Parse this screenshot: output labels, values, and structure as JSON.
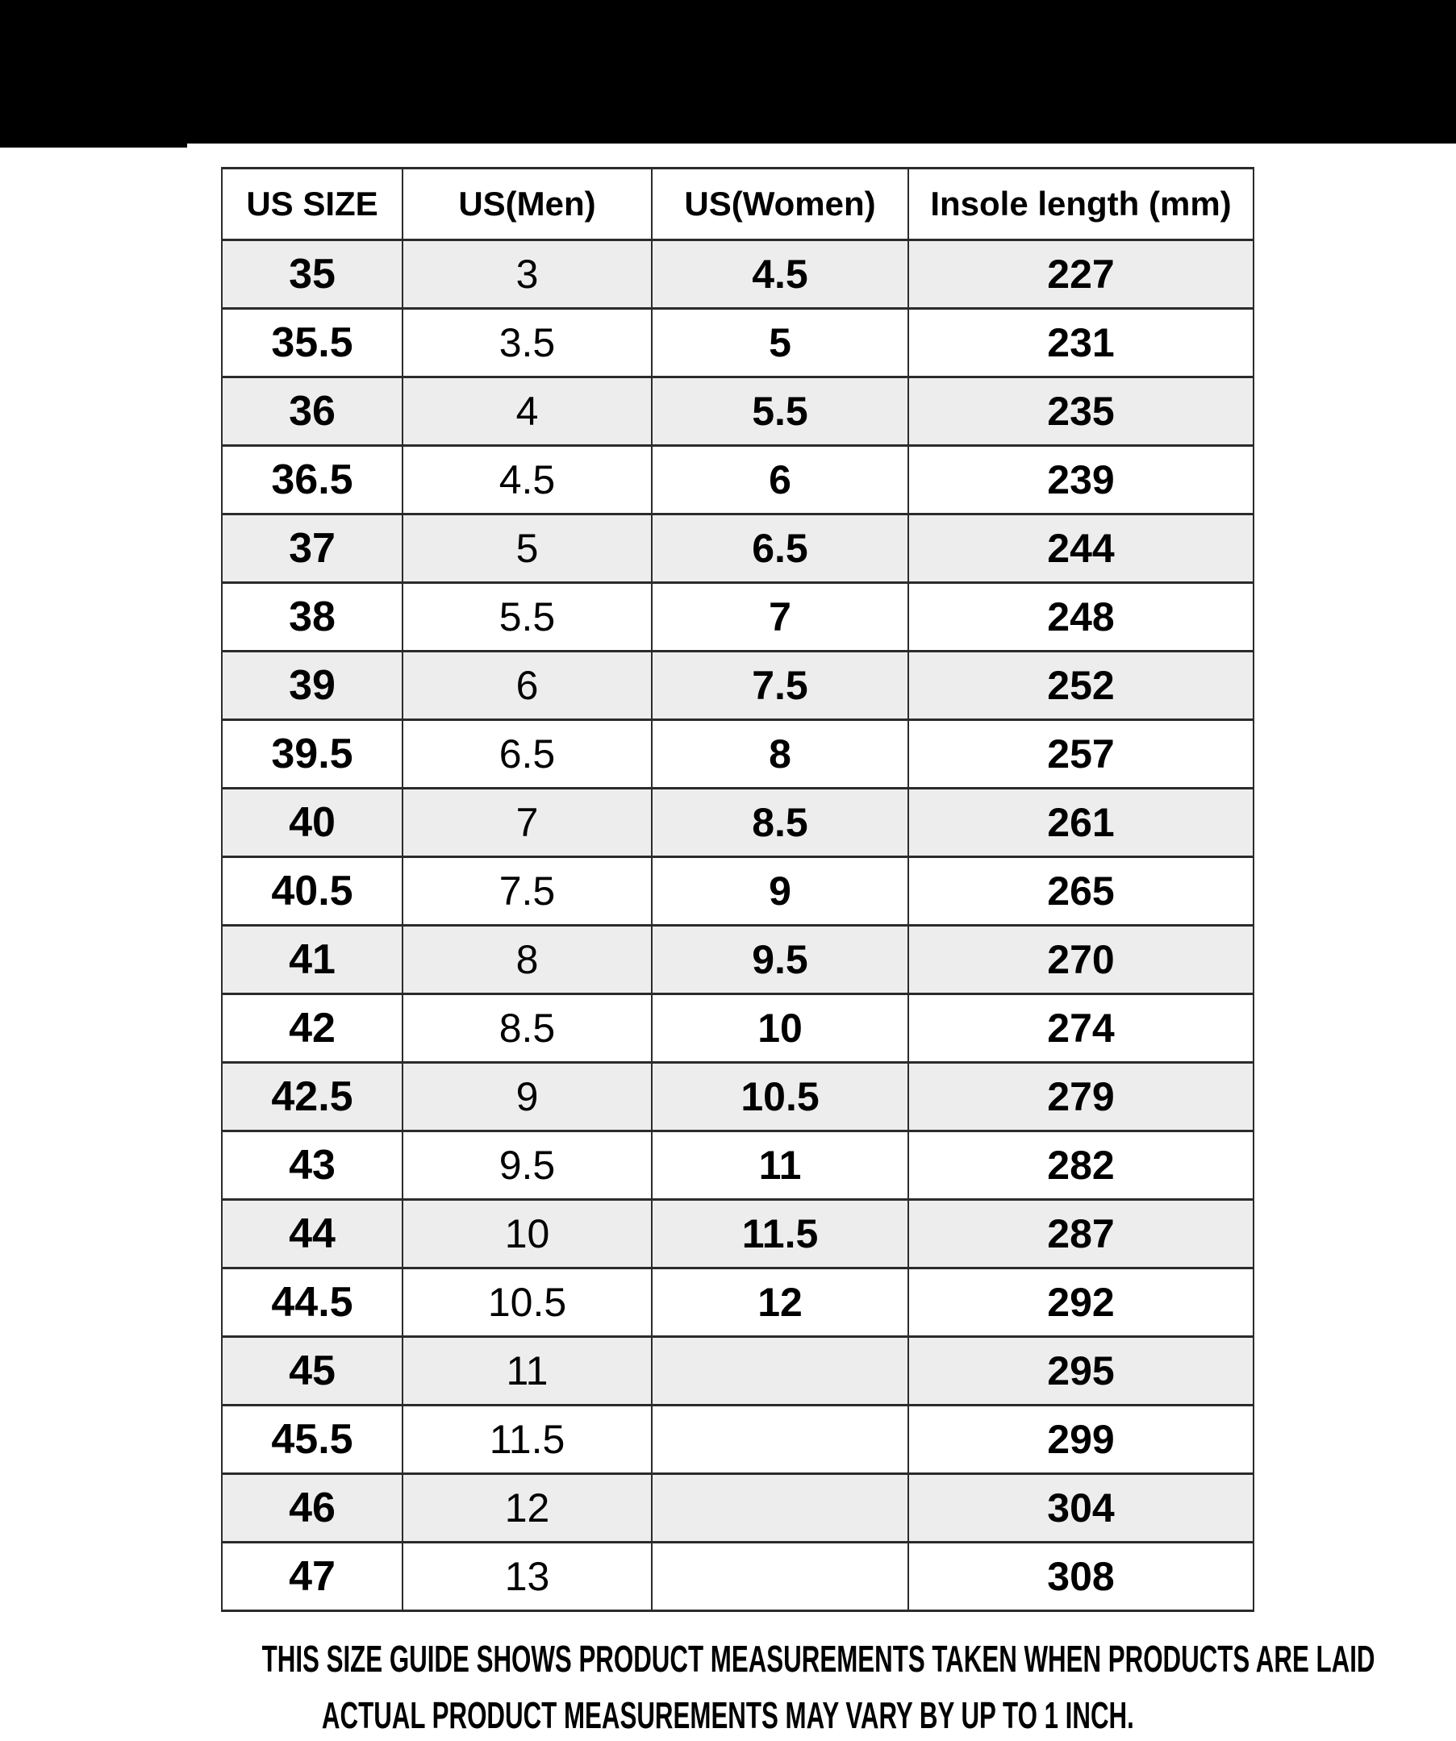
{
  "colors": {
    "top_banner": "#000000",
    "background": "#ffffff",
    "row_shade": "#ededed",
    "table_border": "#2b2b2b",
    "text": "#000000"
  },
  "chart_data": {
    "type": "table",
    "title": "",
    "columns": [
      "US SIZE",
      "US(Men)",
      "US(Women)",
      "Insole length (mm)"
    ],
    "rows": [
      [
        "35",
        "3",
        "4.5",
        "227"
      ],
      [
        "35.5",
        "3.5",
        "5",
        "231"
      ],
      [
        "36",
        "4",
        "5.5",
        "235"
      ],
      [
        "36.5",
        "4.5",
        "6",
        "239"
      ],
      [
        "37",
        "5",
        "6.5",
        "244"
      ],
      [
        "38",
        "5.5",
        "7",
        "248"
      ],
      [
        "39",
        "6",
        "7.5",
        "252"
      ],
      [
        "39.5",
        "6.5",
        "8",
        "257"
      ],
      [
        "40",
        "7",
        "8.5",
        "261"
      ],
      [
        "40.5",
        "7.5",
        "9",
        "265"
      ],
      [
        "41",
        "8",
        "9.5",
        "270"
      ],
      [
        "42",
        "8.5",
        "10",
        "274"
      ],
      [
        "42.5",
        "9",
        "10.5",
        "279"
      ],
      [
        "43",
        "9.5",
        "11",
        "282"
      ],
      [
        "44",
        "10",
        "11.5",
        "287"
      ],
      [
        "44.5",
        "10.5",
        "12",
        "292"
      ],
      [
        "45",
        "11",
        "",
        "295"
      ],
      [
        "45.5",
        "11.5",
        "",
        "299"
      ],
      [
        "46",
        "12",
        "",
        "304"
      ],
      [
        "47",
        "13",
        "",
        "308"
      ]
    ],
    "layout_hints": {
      "shaded_rows": "odd data rows (1st, 3rd, ...)",
      "grid": true,
      "header_background": "#ffffff"
    }
  },
  "footer": {
    "line1": "THIS SIZE GUIDE SHOWS PRODUCT MEASUREMENTS TAKEN WHEN PRODUCTS ARE LAID",
    "line2": "ACTUAL PRODUCT MEASUREMENTS MAY VARY BY UP TO 1 INCH."
  }
}
